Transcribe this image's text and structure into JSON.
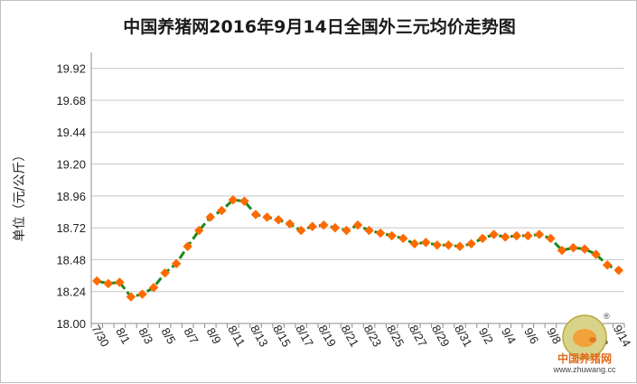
{
  "chart_data": {
    "type": "line",
    "title": "中国养猪网2016年9月14日全国外三元均价走势图",
    "ylabel": "单位（元/公斤）",
    "ylim": [
      18.0,
      20.04
    ],
    "yticks": [
      18.0,
      18.24,
      18.48,
      18.72,
      18.96,
      19.2,
      19.44,
      19.68,
      19.92
    ],
    "ytick_labels": [
      "18.00",
      "18.24",
      "18.48",
      "18.72",
      "18.96",
      "19.20",
      "19.44",
      "19.68",
      "19.92"
    ],
    "x": [
      "7/30",
      "7/31",
      "8/1",
      "8/2",
      "8/3",
      "8/4",
      "8/5",
      "8/6",
      "8/7",
      "8/8",
      "8/9",
      "8/10",
      "8/11",
      "8/12",
      "8/13",
      "8/14",
      "8/15",
      "8/16",
      "8/17",
      "8/18",
      "8/19",
      "8/20",
      "8/21",
      "8/22",
      "8/23",
      "8/24",
      "8/25",
      "8/26",
      "8/27",
      "8/28",
      "8/29",
      "8/30",
      "8/31",
      "9/1",
      "9/2",
      "9/3",
      "9/4",
      "9/5",
      "9/6",
      "9/7",
      "9/8",
      "9/9",
      "9/10",
      "9/11",
      "9/12",
      "9/13",
      "9/14"
    ],
    "xtick_labels": [
      "7/30",
      "8/1",
      "8/3",
      "8/5",
      "8/7",
      "8/9",
      "8/11",
      "8/13",
      "8/15",
      "8/17",
      "8/19",
      "8/21",
      "8/23",
      "8/25",
      "8/27",
      "8/29",
      "8/31",
      "9/2",
      "9/4",
      "9/6",
      "9/8",
      "9/10",
      "9/12",
      "9/14"
    ],
    "series": [
      {
        "values": [
          18.32,
          18.3,
          18.31,
          18.2,
          18.22,
          18.27,
          18.38,
          18.45,
          18.58,
          18.7,
          18.8,
          18.85,
          18.93,
          18.92,
          18.82,
          18.8,
          18.78,
          18.75,
          18.7,
          18.73,
          18.74,
          18.72,
          18.7,
          18.74,
          18.7,
          18.68,
          18.66,
          18.64,
          18.6,
          18.61,
          18.59,
          18.59,
          18.58,
          18.6,
          18.64,
          18.67,
          18.65,
          18.66,
          18.66,
          18.67,
          18.64,
          18.55,
          18.57,
          18.56,
          18.52,
          18.44,
          18.4
        ]
      }
    ],
    "line_color": "#1a8a1a",
    "marker_color": "#ff6a00",
    "grid": true,
    "legend": "none"
  },
  "logo": {
    "name": "中国养猪网",
    "url": "www.zhuwang.cc",
    "mark": "®"
  }
}
